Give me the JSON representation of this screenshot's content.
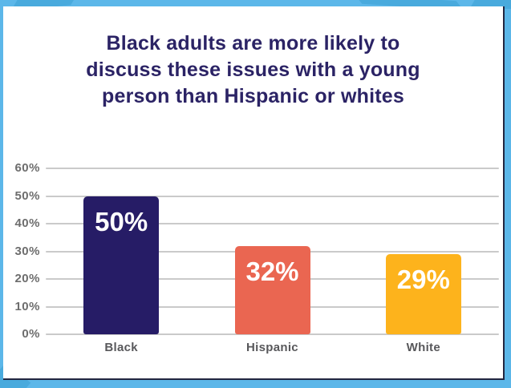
{
  "frame": {
    "border_color": "#5CB7E9",
    "pattern_color": "#49AADD",
    "edge_line_color": "#222640",
    "card_background": "#FFFFFF"
  },
  "header": {
    "title": "Black adults are more likely to\ndiscuss these issues with a young\nperson than Hispanic or whites",
    "title_color": "#2B2365"
  },
  "chart_data": {
    "type": "bar",
    "title": "Black adults are more likely to discuss these issues with a young person than Hispanic or whites",
    "categories": [
      "Black",
      "Hispanic",
      "White"
    ],
    "values": [
      50,
      32,
      29
    ],
    "value_labels": [
      "50%",
      "32%",
      "29%"
    ],
    "bar_colors": [
      "#261C66",
      "#EA6651",
      "#FDB31C"
    ],
    "xlabel": "",
    "ylabel": "",
    "ylim": [
      0,
      60
    ],
    "ytick_step": 10,
    "ytick_labels": [
      "0%",
      "10%",
      "20%",
      "30%",
      "40%",
      "50%",
      "60%"
    ],
    "grid": true,
    "legend": false,
    "gridline_color": "#CACACA",
    "axis_tick_color": "#6D6D6D",
    "category_label_color": "#58585B",
    "value_label_color": "#FFFFFF"
  }
}
